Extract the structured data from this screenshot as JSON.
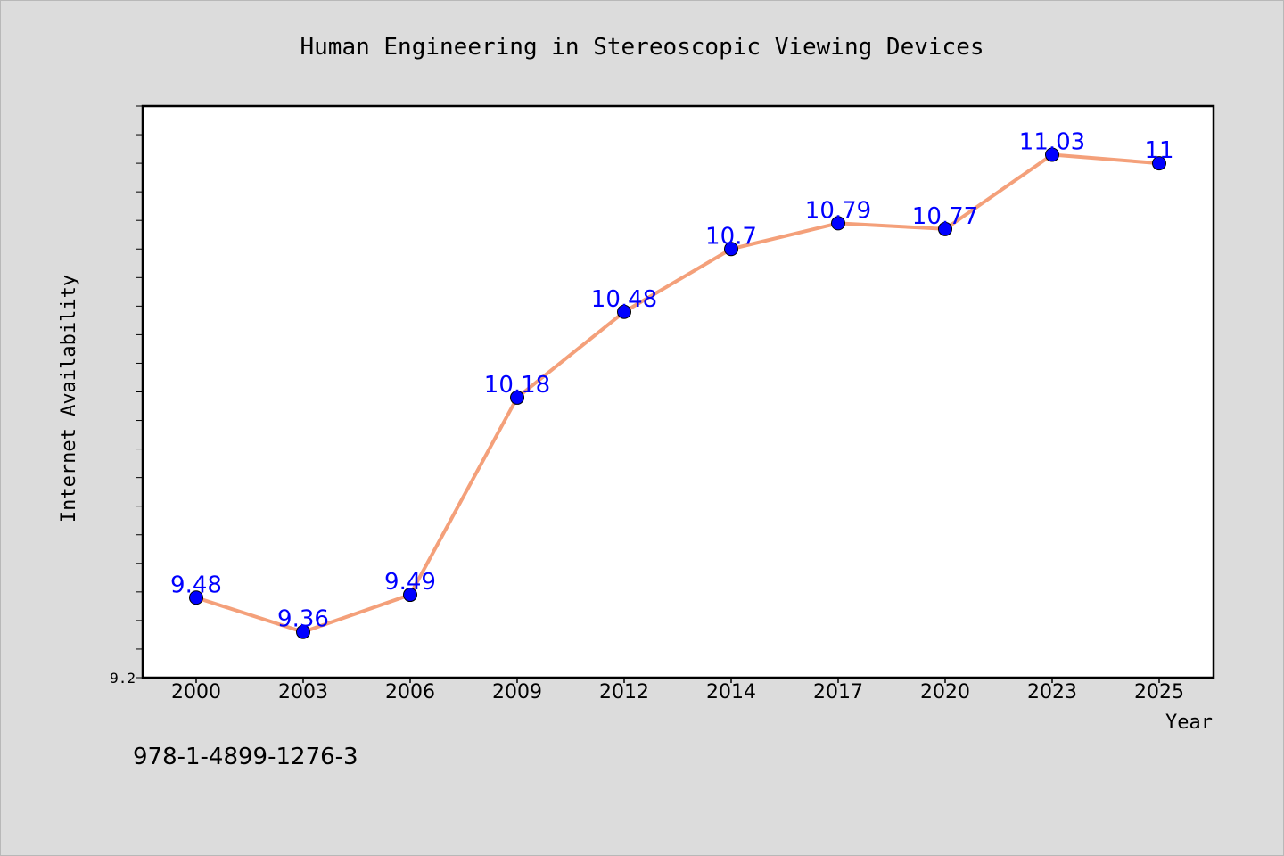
{
  "chart_data": {
    "type": "line",
    "title": "Human Engineering in Stereoscopic Viewing Devices",
    "xlabel": "Year",
    "ylabel": "Internet Availability",
    "categories": [
      "2000",
      "2003",
      "2006",
      "2009",
      "2012",
      "2014",
      "2017",
      "2020",
      "2023",
      "2025"
    ],
    "series": [
      {
        "values": [
          9.48,
          9.36,
          9.49,
          10.18,
          10.48,
          10.7,
          10.79,
          10.77,
          11.03,
          11
        ],
        "labels": [
          "9.48",
          "9.36",
          "9.49",
          "10.18",
          "10.48",
          "10.7",
          "10.79",
          "10.77",
          "11.03",
          "11"
        ],
        "line_color": "#f4a07a",
        "marker_color": "#0000ff"
      }
    ],
    "ylim": [
      9.2,
      11.2
    ],
    "y_tick_labels": [
      "9.2"
    ],
    "grid": false,
    "label_color": "#0000ff"
  },
  "footer": {
    "isbn": "978-1-4899-1276-3"
  }
}
